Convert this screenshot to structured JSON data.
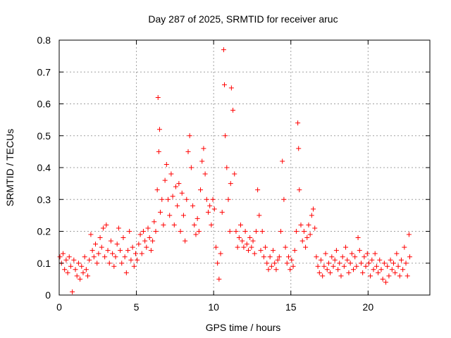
{
  "chart_data": {
    "type": "scatter",
    "title": "Day 287 of 2025, SRMTID for receiver aruc",
    "xlabel": "GPS time / hours",
    "ylabel": "SRMTID / TECUs",
    "xlim": [
      0,
      24
    ],
    "ylim": [
      0,
      0.8
    ],
    "xticks": [
      0,
      5,
      10,
      15,
      20
    ],
    "yticks": [
      0,
      0.1,
      0.2,
      0.3,
      0.4,
      0.5,
      0.6,
      0.7,
      0.8
    ],
    "xtick_labels": [
      "0",
      "5",
      "10",
      "15",
      "20"
    ],
    "ytick_labels": [
      "0",
      "0.1",
      "0.2",
      "0.3",
      "0.4",
      "0.5",
      "0.6",
      "0.7",
      "0.8"
    ],
    "grid": true,
    "marker": "+",
    "series_color": "#ff0000",
    "series": [
      {
        "name": "SRMTID",
        "points": [
          [
            0.05,
            0.12
          ],
          [
            0.15,
            0.1
          ],
          [
            0.25,
            0.13
          ],
          [
            0.35,
            0.08
          ],
          [
            0.45,
            0.11
          ],
          [
            0.55,
            0.07
          ],
          [
            0.65,
            0.12
          ],
          [
            0.75,
            0.09
          ],
          [
            0.85,
            0.01
          ],
          [
            0.95,
            0.11
          ],
          [
            1.05,
            0.08
          ],
          [
            1.15,
            0.06
          ],
          [
            1.25,
            0.1
          ],
          [
            1.35,
            0.05
          ],
          [
            1.45,
            0.09
          ],
          [
            1.55,
            0.07
          ],
          [
            1.65,
            0.12
          ],
          [
            1.75,
            0.08
          ],
          [
            1.85,
            0.06
          ],
          [
            1.95,
            0.11
          ],
          [
            2.05,
            0.19
          ],
          [
            2.15,
            0.14
          ],
          [
            2.25,
            0.12
          ],
          [
            2.35,
            0.16
          ],
          [
            2.45,
            0.1
          ],
          [
            2.55,
            0.13
          ],
          [
            2.65,
            0.18
          ],
          [
            2.75,
            0.15
          ],
          [
            2.85,
            0.21
          ],
          [
            2.95,
            0.12
          ],
          [
            3.05,
            0.22
          ],
          [
            3.15,
            0.14
          ],
          [
            3.25,
            0.1
          ],
          [
            3.35,
            0.17
          ],
          [
            3.45,
            0.13
          ],
          [
            3.55,
            0.09
          ],
          [
            3.65,
            0.12
          ],
          [
            3.75,
            0.16
          ],
          [
            3.85,
            0.21
          ],
          [
            3.95,
            0.14
          ],
          [
            4.05,
            0.1
          ],
          [
            4.15,
            0.18
          ],
          [
            4.25,
            0.12
          ],
          [
            4.35,
            0.07
          ],
          [
            4.45,
            0.14
          ],
          [
            4.55,
            0.2
          ],
          [
            4.65,
            0.11
          ],
          [
            4.75,
            0.15
          ],
          [
            4.85,
            0.09
          ],
          [
            4.95,
            0.13
          ],
          [
            5.05,
            0.11
          ],
          [
            5.15,
            0.16
          ],
          [
            5.25,
            0.19
          ],
          [
            5.35,
            0.13
          ],
          [
            5.45,
            0.2
          ],
          [
            5.55,
            0.17
          ],
          [
            5.65,
            0.15
          ],
          [
            5.75,
            0.21
          ],
          [
            5.85,
            0.18
          ],
          [
            5.95,
            0.14
          ],
          [
            6.05,
            0.17
          ],
          [
            6.15,
            0.23
          ],
          [
            6.25,
            0.2
          ],
          [
            6.35,
            0.33
          ],
          [
            6.4,
            0.62
          ],
          [
            6.45,
            0.45
          ],
          [
            6.5,
            0.52
          ],
          [
            6.55,
            0.26
          ],
          [
            6.65,
            0.3
          ],
          [
            6.75,
            0.22
          ],
          [
            6.85,
            0.36
          ],
          [
            6.95,
            0.41
          ],
          [
            7.05,
            0.3
          ],
          [
            7.15,
            0.25
          ],
          [
            7.25,
            0.38
          ],
          [
            7.35,
            0.31
          ],
          [
            7.45,
            0.22
          ],
          [
            7.55,
            0.34
          ],
          [
            7.65,
            0.28
          ],
          [
            7.75,
            0.35
          ],
          [
            7.85,
            0.2
          ],
          [
            7.95,
            0.32
          ],
          [
            8.05,
            0.25
          ],
          [
            8.15,
            0.17
          ],
          [
            8.25,
            0.3
          ],
          [
            8.35,
            0.45
          ],
          [
            8.45,
            0.5
          ],
          [
            8.55,
            0.4
          ],
          [
            8.65,
            0.28
          ],
          [
            8.75,
            0.22
          ],
          [
            8.85,
            0.19
          ],
          [
            8.95,
            0.24
          ],
          [
            9.05,
            0.2
          ],
          [
            9.15,
            0.33
          ],
          [
            9.25,
            0.42
          ],
          [
            9.35,
            0.46
          ],
          [
            9.45,
            0.38
          ],
          [
            9.55,
            0.3
          ],
          [
            9.65,
            0.26
          ],
          [
            9.75,
            0.28
          ],
          [
            9.85,
            0.22
          ],
          [
            9.95,
            0.3
          ],
          [
            10.05,
            0.27
          ],
          [
            10.15,
            0.15
          ],
          [
            10.25,
            0.1
          ],
          [
            10.35,
            0.05
          ],
          [
            10.45,
            0.13
          ],
          [
            10.55,
            0.26
          ],
          [
            10.65,
            0.77
          ],
          [
            10.7,
            0.66
          ],
          [
            10.75,
            0.5
          ],
          [
            10.85,
            0.4
          ],
          [
            10.95,
            0.3
          ],
          [
            11.05,
            0.2
          ],
          [
            11.1,
            0.35
          ],
          [
            11.15,
            0.65
          ],
          [
            11.25,
            0.58
          ],
          [
            11.35,
            0.38
          ],
          [
            11.45,
            0.2
          ],
          [
            11.55,
            0.15
          ],
          [
            11.65,
            0.18
          ],
          [
            11.75,
            0.22
          ],
          [
            11.85,
            0.17
          ],
          [
            11.95,
            0.15
          ],
          [
            12.05,
            0.2
          ],
          [
            12.15,
            0.16
          ],
          [
            12.25,
            0.14
          ],
          [
            12.35,
            0.18
          ],
          [
            12.45,
            0.15
          ],
          [
            12.55,
            0.17
          ],
          [
            12.65,
            0.13
          ],
          [
            12.75,
            0.2
          ],
          [
            12.85,
            0.33
          ],
          [
            12.95,
            0.25
          ],
          [
            13.05,
            0.14
          ],
          [
            13.15,
            0.2
          ],
          [
            13.25,
            0.12
          ],
          [
            13.35,
            0.15
          ],
          [
            13.45,
            0.1
          ],
          [
            13.55,
            0.08
          ],
          [
            13.65,
            0.12
          ],
          [
            13.75,
            0.09
          ],
          [
            13.85,
            0.14
          ],
          [
            13.95,
            0.1
          ],
          [
            14.05,
            0.08
          ],
          [
            14.15,
            0.11
          ],
          [
            14.25,
            0.12
          ],
          [
            14.35,
            0.2
          ],
          [
            14.45,
            0.42
          ],
          [
            14.55,
            0.3
          ],
          [
            14.65,
            0.15
          ],
          [
            14.75,
            0.1
          ],
          [
            14.85,
            0.12
          ],
          [
            14.95,
            0.08
          ],
          [
            15.05,
            0.11
          ],
          [
            15.15,
            0.09
          ],
          [
            15.25,
            0.14
          ],
          [
            15.35,
            0.2
          ],
          [
            15.45,
            0.54
          ],
          [
            15.5,
            0.46
          ],
          [
            15.55,
            0.33
          ],
          [
            15.65,
            0.22
          ],
          [
            15.75,
            0.17
          ],
          [
            15.85,
            0.2
          ],
          [
            15.95,
            0.15
          ],
          [
            16.05,
            0.18
          ],
          [
            16.15,
            0.22
          ],
          [
            16.25,
            0.19
          ],
          [
            16.35,
            0.25
          ],
          [
            16.45,
            0.27
          ],
          [
            16.55,
            0.21
          ],
          [
            16.65,
            0.12
          ],
          [
            16.75,
            0.09
          ],
          [
            16.85,
            0.07
          ],
          [
            16.95,
            0.11
          ],
          [
            17.05,
            0.06
          ],
          [
            17.15,
            0.09
          ],
          [
            17.25,
            0.13
          ],
          [
            17.35,
            0.08
          ],
          [
            17.45,
            0.1
          ],
          [
            17.55,
            0.07
          ],
          [
            17.65,
            0.12
          ],
          [
            17.75,
            0.09
          ],
          [
            17.85,
            0.11
          ],
          [
            17.95,
            0.14
          ],
          [
            18.05,
            0.08
          ],
          [
            18.15,
            0.1
          ],
          [
            18.25,
            0.06
          ],
          [
            18.35,
            0.12
          ],
          [
            18.45,
            0.09
          ],
          [
            18.55,
            0.15
          ],
          [
            18.65,
            0.11
          ],
          [
            18.75,
            0.07
          ],
          [
            18.85,
            0.1
          ],
          [
            18.95,
            0.13
          ],
          [
            19.05,
            0.08
          ],
          [
            19.15,
            0.12
          ],
          [
            19.25,
            0.09
          ],
          [
            19.35,
            0.18
          ],
          [
            19.45,
            0.14
          ],
          [
            19.55,
            0.1
          ],
          [
            19.65,
            0.07
          ],
          [
            19.75,
            0.12
          ],
          [
            19.85,
            0.09
          ],
          [
            19.95,
            0.13
          ],
          [
            20.05,
            0.1
          ],
          [
            20.15,
            0.06
          ],
          [
            20.25,
            0.11
          ],
          [
            20.35,
            0.08
          ],
          [
            20.45,
            0.13
          ],
          [
            20.55,
            0.09
          ],
          [
            20.65,
            0.07
          ],
          [
            20.75,
            0.11
          ],
          [
            20.85,
            0.08
          ],
          [
            20.95,
            0.05
          ],
          [
            21.05,
            0.1
          ],
          [
            21.15,
            0.04
          ],
          [
            21.25,
            0.09
          ],
          [
            21.35,
            0.06
          ],
          [
            21.45,
            0.11
          ],
          [
            21.55,
            0.08
          ],
          [
            21.65,
            0.1
          ],
          [
            21.75,
            0.07
          ],
          [
            21.85,
            0.13
          ],
          [
            21.95,
            0.09
          ],
          [
            22.05,
            0.06
          ],
          [
            22.15,
            0.11
          ],
          [
            22.25,
            0.08
          ],
          [
            22.35,
            0.15
          ],
          [
            22.45,
            0.1
          ],
          [
            22.55,
            0.06
          ],
          [
            22.65,
            0.19
          ],
          [
            22.7,
            0.12
          ]
        ]
      }
    ]
  }
}
